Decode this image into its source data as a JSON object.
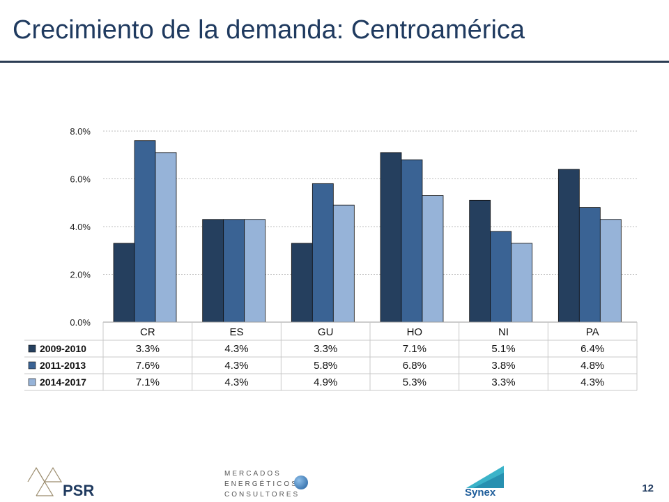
{
  "slide": {
    "title": "Crecimiento de la demanda: Centroamérica",
    "page_number": "12"
  },
  "logos": {
    "psr": "PSR",
    "mec_line1": "MERCADOS",
    "mec_line2": "ENERGÉTICOS",
    "mec_line3": "CONSULTORES",
    "synex": "Synex"
  },
  "colors": {
    "series": [
      "#253f5e",
      "#3a6394",
      "#96b3d8"
    ],
    "title": "#1f3a5f"
  },
  "chart_data": {
    "type": "bar",
    "categories": [
      "CR",
      "ES",
      "GU",
      "HO",
      "NI",
      "PA"
    ],
    "series": [
      {
        "name": "2009-2010",
        "values": [
          3.3,
          4.3,
          3.3,
          7.1,
          5.1,
          6.4
        ],
        "labels": [
          "3.3%",
          "4.3%",
          "3.3%",
          "7.1%",
          "5.1%",
          "6.4%"
        ]
      },
      {
        "name": "2011-2013",
        "values": [
          7.6,
          4.3,
          5.8,
          6.8,
          3.8,
          4.8
        ],
        "labels": [
          "7.6%",
          "4.3%",
          "5.8%",
          "6.8%",
          "3.8%",
          "4.8%"
        ]
      },
      {
        "name": "2014-2017",
        "values": [
          7.1,
          4.3,
          4.9,
          5.3,
          3.3,
          4.3
        ],
        "labels": [
          "7.1%",
          "4.3%",
          "4.9%",
          "5.3%",
          "3.3%",
          "4.3%"
        ]
      }
    ],
    "ylim": [
      0,
      8
    ],
    "yticks": [
      0,
      2,
      4,
      6,
      8
    ],
    "ytick_labels": [
      "0.0%",
      "2.0%",
      "4.0%",
      "6.0%",
      "8.0%"
    ],
    "grid": true,
    "data_table": true
  }
}
